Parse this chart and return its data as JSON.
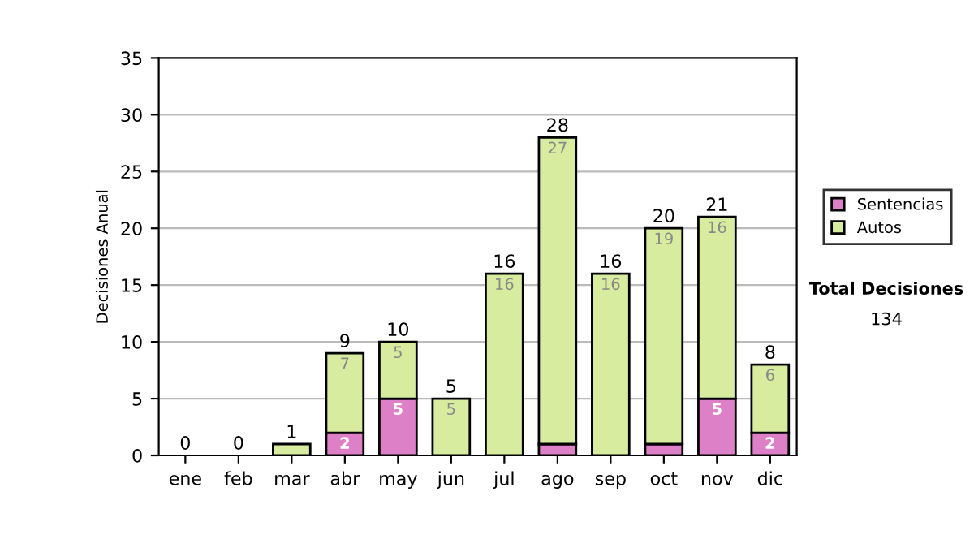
{
  "chart_data": {
    "type": "bar",
    "stacked": true,
    "ylabel": "Decisiones Anual",
    "categories": [
      "ene",
      "feb",
      "mar",
      "abr",
      "may",
      "jun",
      "jul",
      "ago",
      "sep",
      "oct",
      "nov",
      "dic"
    ],
    "series": [
      {
        "name": "Sentencias",
        "color": "#dd80c8",
        "values": [
          0,
          0,
          0,
          2,
          5,
          0,
          0,
          1,
          0,
          1,
          5,
          2
        ],
        "value_labels": [
          null,
          null,
          null,
          "2",
          "5",
          null,
          null,
          null,
          null,
          null,
          "5",
          "2"
        ]
      },
      {
        "name": "Autos",
        "color": "#d8eca0",
        "values": [
          0,
          0,
          1,
          7,
          5,
          5,
          16,
          27,
          16,
          19,
          16,
          6
        ],
        "value_labels": [
          null,
          null,
          null,
          "7",
          "5",
          "5",
          "16",
          "27",
          "16",
          "19",
          "16",
          "6"
        ]
      }
    ],
    "totals": [
      "0",
      "0",
      "1",
      "9",
      "10",
      "5",
      "16",
      "28",
      "16",
      "20",
      "21",
      "8"
    ],
    "ylim": [
      0,
      35
    ],
    "yticks": [
      0,
      5,
      10,
      15,
      20,
      25,
      30,
      35
    ],
    "grid": "y",
    "legend": "right",
    "annotations": [
      "Total Decisiones",
      "134"
    ]
  }
}
